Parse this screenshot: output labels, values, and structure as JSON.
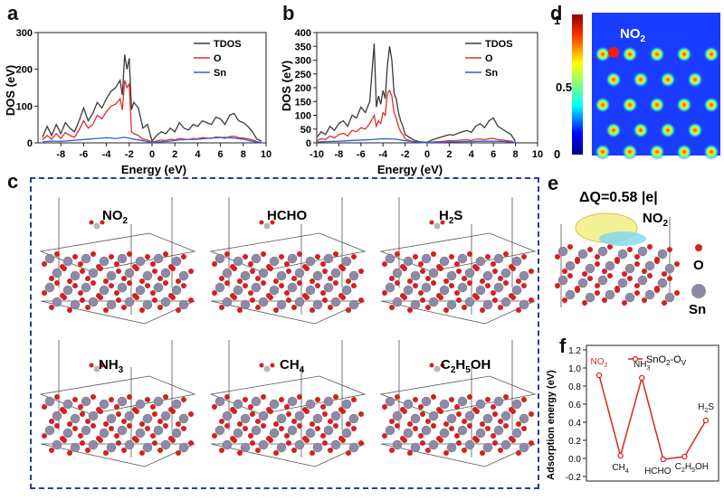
{
  "panels": {
    "a": "a",
    "b": "b",
    "c": "c",
    "d": "d",
    "e": "e",
    "f": "f"
  },
  "chart_data": [
    {
      "id": "a",
      "type": "line",
      "xlabel": "Energy (eV)",
      "ylabel": "DOS (eV)",
      "xlim": [
        -10,
        10
      ],
      "ylim": [
        0,
        300
      ],
      "xticks": [
        -8,
        -6,
        -4,
        -2,
        0,
        2,
        4,
        6,
        8,
        10
      ],
      "yticks": [
        0,
        100,
        200,
        300
      ],
      "legend_position": "top-right",
      "series": [
        {
          "name": "TDOS",
          "color": "#3a3a3a",
          "x": [
            -9.6,
            -9.2,
            -8.8,
            -8.4,
            -8.0,
            -7.6,
            -7.2,
            -6.8,
            -6.4,
            -6.0,
            -5.6,
            -5.2,
            -4.8,
            -4.4,
            -4.0,
            -3.6,
            -3.2,
            -2.8,
            -2.6,
            -2.4,
            -2.2,
            -2.0,
            -1.8,
            -1.6,
            -1.2,
            -0.8,
            -0.4,
            0.0,
            0.4,
            0.8,
            1.2,
            1.6,
            2.0,
            2.4,
            2.8,
            3.2,
            3.6,
            4.0,
            4.4,
            4.8,
            5.2,
            5.6,
            6.0,
            6.4,
            6.8,
            7.2,
            7.6,
            8.0,
            8.4,
            8.8,
            9.2,
            9.6
          ],
          "y": [
            15,
            45,
            20,
            50,
            25,
            55,
            40,
            30,
            60,
            95,
            60,
            80,
            110,
            95,
            120,
            140,
            150,
            170,
            130,
            240,
            200,
            230,
            90,
            110,
            95,
            40,
            50,
            5,
            20,
            30,
            25,
            40,
            30,
            55,
            40,
            35,
            50,
            45,
            60,
            55,
            50,
            70,
            65,
            50,
            75,
            80,
            60,
            55,
            45,
            30,
            10,
            5
          ]
        },
        {
          "name": "O",
          "color": "#e0302a",
          "x": [
            -9.6,
            -9.2,
            -8.8,
            -8.4,
            -8.0,
            -7.6,
            -7.2,
            -6.8,
            -6.4,
            -6.0,
            -5.6,
            -5.2,
            -4.8,
            -4.4,
            -4.0,
            -3.6,
            -3.2,
            -2.8,
            -2.6,
            -2.4,
            -2.2,
            -2.0,
            -1.8,
            -1.6,
            -1.2,
            -0.8,
            -0.4,
            0.0,
            0.4,
            0.8,
            1.2,
            1.6,
            2.0,
            2.4,
            2.8,
            3.2,
            3.6,
            4.0,
            4.4,
            4.8,
            5.2,
            5.6,
            6.0,
            6.4,
            6.8,
            7.2,
            7.6,
            8.0,
            8.4,
            8.8,
            9.2,
            9.6
          ],
          "y": [
            8,
            20,
            10,
            25,
            12,
            28,
            20,
            15,
            35,
            60,
            40,
            50,
            75,
            65,
            85,
            100,
            105,
            120,
            90,
            170,
            150,
            160,
            30,
            25,
            20,
            10,
            8,
            2,
            5,
            8,
            6,
            10,
            8,
            12,
            10,
            9,
            12,
            11,
            14,
            13,
            12,
            16,
            15,
            12,
            17,
            18,
            14,
            13,
            11,
            8,
            3,
            1
          ]
        },
        {
          "name": "Sn",
          "color": "#2f5fd6",
          "x": [
            -9.6,
            -8.8,
            -8.0,
            -7.2,
            -6.4,
            -5.6,
            -4.8,
            -4.0,
            -3.2,
            -2.4,
            -1.6,
            -0.8,
            0.0,
            0.8,
            1.6,
            2.4,
            3.2,
            4.0,
            4.8,
            5.6,
            6.4,
            7.2,
            8.0,
            8.8,
            9.6
          ],
          "y": [
            3,
            5,
            4,
            6,
            8,
            10,
            12,
            14,
            12,
            15,
            10,
            6,
            1,
            3,
            5,
            8,
            9,
            10,
            12,
            14,
            15,
            13,
            10,
            4,
            1
          ]
        }
      ]
    },
    {
      "id": "b",
      "type": "line",
      "xlabel": "Energy (eV)",
      "ylabel": "DOS (eV)",
      "xlim": [
        -10,
        10
      ],
      "ylim": [
        0,
        400
      ],
      "xticks": [
        -10,
        -8,
        -6,
        -4,
        -2,
        0,
        2,
        4,
        6,
        8,
        10
      ],
      "yticks": [
        0,
        50,
        100,
        150,
        200,
        250,
        300,
        350,
        400
      ],
      "legend_position": "top-right",
      "series": [
        {
          "name": "TDOS",
          "color": "#3a3a3a",
          "x": [
            -10,
            -9.6,
            -9.2,
            -8.8,
            -8.4,
            -8.0,
            -7.6,
            -7.2,
            -6.8,
            -6.4,
            -6.0,
            -5.6,
            -5.2,
            -4.8,
            -4.6,
            -4.4,
            -4.2,
            -4.0,
            -3.8,
            -3.6,
            -3.4,
            -3.2,
            -3.0,
            -2.8,
            -2.6,
            -2.4,
            -2.2,
            -2.0,
            -1.6,
            -1.2,
            -0.8,
            -0.4,
            0.0,
            0.4,
            0.8,
            1.2,
            1.6,
            2.0,
            2.4,
            2.8,
            3.2,
            3.6,
            4.0,
            4.4,
            4.8,
            5.2,
            5.6,
            6.0,
            6.4,
            6.8,
            7.2,
            7.6,
            8.0
          ],
          "y": [
            20,
            40,
            30,
            60,
            45,
            70,
            80,
            60,
            100,
            90,
            130,
            110,
            150,
            360,
            130,
            170,
            140,
            190,
            160,
            280,
            350,
            300,
            180,
            160,
            110,
            80,
            60,
            30,
            20,
            10,
            5,
            3,
            2,
            10,
            15,
            20,
            25,
            30,
            28,
            35,
            40,
            45,
            38,
            60,
            70,
            55,
            80,
            90,
            60,
            50,
            40,
            30,
            5
          ]
        },
        {
          "name": "O",
          "color": "#e0302a",
          "x": [
            -10,
            -9.6,
            -9.2,
            -8.8,
            -8.4,
            -8.0,
            -7.6,
            -7.2,
            -6.8,
            -6.4,
            -6.0,
            -5.6,
            -5.2,
            -4.8,
            -4.6,
            -4.4,
            -4.2,
            -4.0,
            -3.8,
            -3.6,
            -3.4,
            -3.2,
            -3.0,
            -2.8,
            -2.6,
            -2.4,
            -2.2,
            -2.0,
            -1.6,
            -1.2,
            -0.8,
            -0.4,
            0.0,
            0.4,
            0.8,
            1.2,
            1.6,
            2.0,
            2.4,
            2.8,
            3.2,
            3.6,
            4.0,
            4.4,
            4.8,
            5.2,
            5.6,
            6.0,
            6.4,
            6.8,
            7.2,
            7.6,
            8.0
          ],
          "y": [
            8,
            15,
            12,
            25,
            18,
            30,
            35,
            25,
            45,
            40,
            55,
            50,
            70,
            100,
            60,
            80,
            70,
            110,
            100,
            180,
            190,
            170,
            110,
            90,
            60,
            40,
            30,
            15,
            8,
            4,
            2,
            1,
            1,
            3,
            4,
            5,
            6,
            8,
            7,
            9,
            10,
            11,
            9,
            13,
            14,
            12,
            15,
            16,
            12,
            10,
            8,
            6,
            1
          ]
        },
        {
          "name": "Sn",
          "color": "#2f5fd6",
          "x": [
            -10,
            -9.0,
            -8.0,
            -7.0,
            -6.0,
            -5.0,
            -4.0,
            -3.0,
            -2.0,
            -1.0,
            0.0,
            1.0,
            2.0,
            3.0,
            4.0,
            5.0,
            6.0,
            7.0,
            8.0
          ],
          "y": [
            3,
            5,
            6,
            8,
            10,
            12,
            15,
            14,
            8,
            3,
            1,
            2,
            3,
            4,
            5,
            6,
            6,
            5,
            1
          ]
        }
      ]
    },
    {
      "id": "f",
      "type": "line",
      "xlabel": "",
      "ylabel": "Adsorption energy (eV)",
      "ylim": [
        -0.25,
        1.25
      ],
      "yticks": [
        -0.2,
        0.0,
        0.2,
        0.4,
        0.6,
        0.8,
        1.0,
        1.2
      ],
      "legend_position": "top-right",
      "categories": [
        "NO2",
        "CH4",
        "NH3",
        "HCHO",
        "C2H5OH",
        "H2S"
      ],
      "series": [
        {
          "name": "SnO2-Ov",
          "color": "#d62a22",
          "values": [
            0.92,
            0.03,
            0.89,
            -0.01,
            0.02,
            0.42
          ]
        }
      ]
    }
  ],
  "panel_a": {
    "legend": [
      "TDOS",
      "O",
      "Sn"
    ],
    "ytick_labels": [
      "0",
      "100",
      "200",
      "300"
    ],
    "xtick_labels": [
      "-8",
      "-6",
      "-4",
      "-2",
      "0",
      "2",
      "4",
      "6",
      "8",
      "10"
    ],
    "xlabel": "Energy (eV)",
    "ylabel": "DOS (eV)"
  },
  "panel_b": {
    "legend": [
      "TDOS",
      "O",
      "Sn"
    ],
    "ytick_labels": [
      "0",
      "50",
      "100",
      "150",
      "200",
      "250",
      "300",
      "350",
      "400"
    ],
    "xtick_labels": [
      "-10",
      "-8",
      "-6",
      "-4",
      "-2",
      "0",
      "2",
      "4",
      "6",
      "8",
      "10"
    ],
    "xlabel": "Energy (eV)",
    "ylabel": "DOS (eV)"
  },
  "panel_c": {
    "slabs": [
      {
        "label_main": "NO",
        "label_sub": "2",
        "label_rest": ""
      },
      {
        "label_main": "HCHO",
        "label_sub": "",
        "label_rest": ""
      },
      {
        "label_main": "H",
        "label_sub": "2",
        "label_rest": "S"
      },
      {
        "label_main": "NH",
        "label_sub": "3",
        "label_rest": ""
      },
      {
        "label_main": "CH",
        "label_sub": "4",
        "label_rest": ""
      },
      {
        "label_main": "C",
        "label_sub": "2",
        "label_rest": "H",
        "label_sub2": "5",
        "label_rest2": "OH"
      }
    ]
  },
  "panel_d": {
    "colorbar_ticks": [
      "1",
      "0.5",
      "0"
    ],
    "label_main": "NO",
    "label_sub": "2"
  },
  "panel_e": {
    "charge": "ΔQ=0.58 |e|",
    "label_main": "NO",
    "label_sub": "2",
    "legend": [
      "O",
      "Sn"
    ]
  },
  "panel_f": {
    "legend_main": "SnO",
    "legend_sub": "2",
    "legend_rest": "-O",
    "legend_sub2": "V",
    "ytick_labels": [
      "-0.2",
      "0.0",
      "0.2",
      "0.4",
      "0.6",
      "0.8",
      "1.0",
      "1.2"
    ],
    "ylabel": "Adsorption energy (eV)",
    "point_labels": [
      {
        "main": "NO",
        "sub": "2",
        "rest": "",
        "color": "#d62a22"
      },
      {
        "main": "CH",
        "sub": "4",
        "rest": "",
        "color": "#111111"
      },
      {
        "main": "NH",
        "sub": "3",
        "rest": "",
        "color": "#111111"
      },
      {
        "main": "HCHO",
        "sub": "",
        "rest": "",
        "color": "#111111"
      },
      {
        "main": "C",
        "sub": "2",
        "rest": "H",
        "sub2": "5",
        "rest2": "OH",
        "color": "#111111"
      },
      {
        "main": "H",
        "sub": "2",
        "rest": "S",
        "color": "#111111"
      }
    ]
  }
}
